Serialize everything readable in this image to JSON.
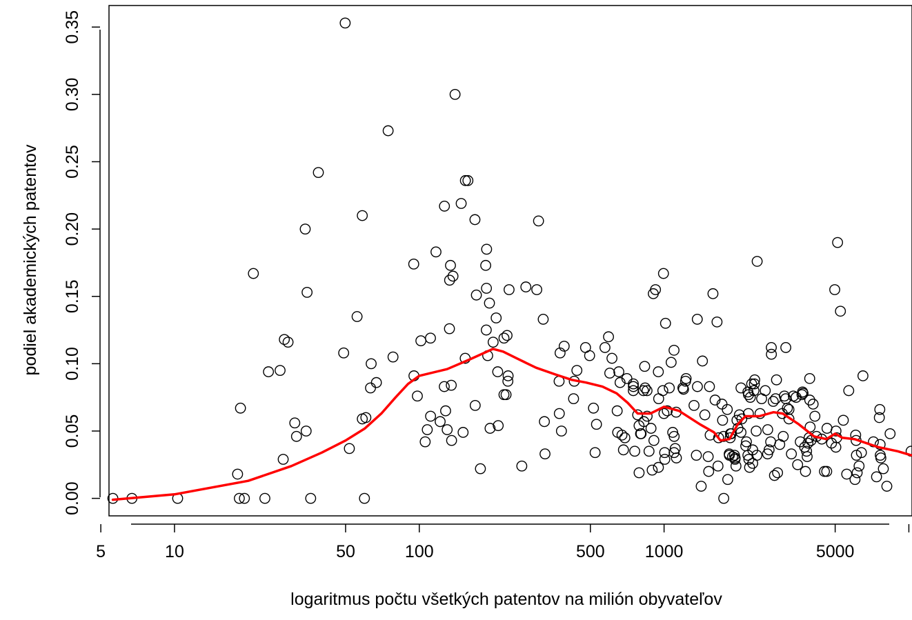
{
  "chart_data": {
    "type": "scatter",
    "xlabel": "logaritmus počtu všetkých patentov na milión obyvateľov",
    "ylabel": "podiel akademických patentov",
    "x_scale": "log",
    "xlim": [
      5.4,
      10300
    ],
    "ylim": [
      -0.013,
      0.366
    ],
    "x_ticks": [
      5,
      10,
      50,
      100,
      500,
      1000,
      5000
    ],
    "x_tick_labels": [
      "5",
      "10",
      "50",
      "100",
      "500",
      "1000",
      "5000"
    ],
    "x_unlabeled_ticks": [
      10000
    ],
    "y_ticks": [
      0.0,
      0.05,
      0.1,
      0.15,
      0.2,
      0.25,
      0.3,
      0.35
    ],
    "y_tick_labels": [
      "0.00",
      "0.05",
      "0.10",
      "0.15",
      "0.20",
      "0.25",
      "0.30",
      "0.35"
    ],
    "grid": false,
    "marker_color": "#000000",
    "line_color": "#ff0000",
    "points": [
      [
        5.6,
        0.0
      ],
      [
        6.7,
        0.0
      ],
      [
        10.3,
        0.0
      ],
      [
        18.1,
        0.018
      ],
      [
        18.4,
        0.0
      ],
      [
        18.6,
        0.067
      ],
      [
        19.3,
        0.0
      ],
      [
        21.0,
        0.167
      ],
      [
        23.4,
        0.0
      ],
      [
        24.2,
        0.094
      ],
      [
        27.0,
        0.095
      ],
      [
        27.8,
        0.029
      ],
      [
        28.1,
        0.118
      ],
      [
        29.1,
        0.116
      ],
      [
        31.0,
        0.056
      ],
      [
        31.5,
        0.046
      ],
      [
        34.2,
        0.2
      ],
      [
        34.8,
        0.153
      ],
      [
        34.5,
        0.05
      ],
      [
        36.0,
        0.0
      ],
      [
        38.7,
        0.242
      ],
      [
        49.8,
        0.353
      ],
      [
        49.1,
        0.108
      ],
      [
        51.8,
        0.037
      ],
      [
        55.7,
        0.135
      ],
      [
        58.5,
        0.21
      ],
      [
        58.5,
        0.059
      ],
      [
        60.5,
        0.06
      ],
      [
        59.7,
        0.0
      ],
      [
        63.2,
        0.082
      ],
      [
        63.6,
        0.1
      ],
      [
        66.8,
        0.086
      ],
      [
        74.6,
        0.273
      ],
      [
        78.1,
        0.105
      ],
      [
        94.9,
        0.174
      ],
      [
        95.1,
        0.091
      ],
      [
        98.2,
        0.076
      ],
      [
        101.5,
        0.117
      ],
      [
        105.7,
        0.042
      ],
      [
        107.8,
        0.051
      ],
      [
        111.2,
        0.061
      ],
      [
        111.1,
        0.119
      ],
      [
        117.0,
        0.183
      ],
      [
        121.7,
        0.057
      ],
      [
        126.7,
        0.217
      ],
      [
        126.5,
        0.083
      ],
      [
        128.1,
        0.065
      ],
      [
        130.0,
        0.051
      ],
      [
        132.8,
        0.126
      ],
      [
        134.1,
        0.173
      ],
      [
        133.0,
        0.162
      ],
      [
        135.1,
        0.084
      ],
      [
        135.5,
        0.043
      ],
      [
        137.3,
        0.165
      ],
      [
        140.0,
        0.3
      ],
      [
        148.3,
        0.219
      ],
      [
        151.0,
        0.049
      ],
      [
        154.0,
        0.104
      ],
      [
        154.3,
        0.236
      ],
      [
        158.0,
        0.236
      ],
      [
        168.8,
        0.207
      ],
      [
        169.2,
        0.069
      ],
      [
        171.1,
        0.151
      ],
      [
        177.7,
        0.022
      ],
      [
        186.8,
        0.173
      ],
      [
        188.1,
        0.156
      ],
      [
        188.4,
        0.185
      ],
      [
        187.8,
        0.125
      ],
      [
        190.3,
        0.106
      ],
      [
        193.5,
        0.145
      ],
      [
        194.6,
        0.052
      ],
      [
        200.3,
        0.116
      ],
      [
        206.1,
        0.134
      ],
      [
        209.1,
        0.094
      ],
      [
        210.1,
        0.054
      ],
      [
        221.8,
        0.119
      ],
      [
        221.8,
        0.077
      ],
      [
        226.2,
        0.077
      ],
      [
        228.3,
        0.121
      ],
      [
        230.6,
        0.091
      ],
      [
        230.1,
        0.087
      ],
      [
        232.7,
        0.155
      ],
      [
        262.3,
        0.024
      ],
      [
        272.5,
        0.157
      ],
      [
        302.0,
        0.155
      ],
      [
        307.0,
        0.206
      ],
      [
        320.8,
        0.133
      ],
      [
        324.4,
        0.057
      ],
      [
        326.3,
        0.033
      ],
      [
        372.5,
        0.087
      ],
      [
        373.3,
        0.063
      ],
      [
        376.0,
        0.108
      ],
      [
        380.8,
        0.05
      ],
      [
        390.8,
        0.113
      ],
      [
        426.8,
        0.074
      ],
      [
        429.6,
        0.087
      ],
      [
        440.4,
        0.095
      ],
      [
        477.7,
        0.112
      ],
      [
        496.4,
        0.106
      ],
      [
        514.7,
        0.067
      ],
      [
        522.7,
        0.034
      ],
      [
        529.5,
        0.055
      ],
      [
        573.5,
        0.112
      ],
      [
        593.0,
        0.12
      ],
      [
        600.0,
        0.093
      ],
      [
        612.5,
        0.104
      ],
      [
        643.4,
        0.065
      ],
      [
        653.4,
        0.094
      ],
      [
        646.3,
        0.049
      ],
      [
        661.1,
        0.086
      ],
      [
        673.0,
        0.047
      ],
      [
        682.3,
        0.036
      ],
      [
        691.5,
        0.045
      ],
      [
        704.7,
        0.089
      ],
      [
        748.7,
        0.08
      ],
      [
        749.2,
        0.083
      ],
      [
        749.0,
        0.085
      ],
      [
        758.7,
        0.035
      ],
      [
        780.0,
        0.062
      ],
      [
        790.3,
        0.054
      ],
      [
        790.6,
        0.019
      ],
      [
        801.5,
        0.048
      ],
      [
        805.8,
        0.048
      ],
      [
        824.0,
        0.08
      ],
      [
        826.8,
        0.057
      ],
      [
        833.1,
        0.098
      ],
      [
        836.4,
        0.082
      ],
      [
        852.0,
        0.08
      ],
      [
        852.7,
        0.061
      ],
      [
        868.0,
        0.035
      ],
      [
        884.4,
        0.052
      ],
      [
        894.1,
        0.021
      ],
      [
        903.6,
        0.152
      ],
      [
        908.7,
        0.043
      ],
      [
        922.5,
        0.155
      ],
      [
        947.5,
        0.094
      ],
      [
        950.4,
        0.074
      ],
      [
        948.1,
        0.023
      ],
      [
        994.4,
        0.167
      ],
      [
        988.3,
        0.08
      ],
      [
        998.6,
        0.063
      ],
      [
        1005.7,
        0.034
      ],
      [
        1006.8,
        0.029
      ],
      [
        1013.8,
        0.13
      ],
      [
        1030.5,
        0.065
      ],
      [
        1050.3,
        0.082
      ],
      [
        1068.8,
        0.101
      ],
      [
        1084.7,
        0.049
      ],
      [
        1098.2,
        0.11
      ],
      [
        1099.6,
        0.046
      ],
      [
        1098.6,
        0.034
      ],
      [
        1110.6,
        0.037
      ],
      [
        1120.6,
        0.064
      ],
      [
        1123.0,
        0.03
      ],
      [
        1193.6,
        0.082
      ],
      [
        1200.6,
        0.081
      ],
      [
        1224.1,
        0.087
      ],
      [
        1230.2,
        0.089
      ],
      [
        1325.3,
        0.069
      ],
      [
        1355.1,
        0.032
      ],
      [
        1366.8,
        0.133
      ],
      [
        1368.5,
        0.083
      ],
      [
        1417.8,
        0.009
      ],
      [
        1434.7,
        0.102
      ],
      [
        1467.3,
        0.062
      ],
      [
        1514.3,
        0.031
      ],
      [
        1521.4,
        0.02
      ],
      [
        1532.5,
        0.083
      ],
      [
        1542.8,
        0.047
      ],
      [
        1583.8,
        0.152
      ],
      [
        1616.0,
        0.073
      ],
      [
        1645.5,
        0.131
      ],
      [
        1660.7,
        0.024
      ],
      [
        1670.2,
        0.045
      ],
      [
        1724.2,
        0.07
      ],
      [
        1733.8,
        0.058
      ],
      [
        1750.8,
        0.046
      ],
      [
        1753.1,
        0.0
      ],
      [
        1812.3,
        0.066
      ],
      [
        1820.1,
        0.014
      ],
      [
        1845.1,
        0.033
      ],
      [
        1847.9,
        0.032
      ],
      [
        1863.0,
        0.045
      ],
      [
        1867.2,
        0.048
      ],
      [
        1881.5,
        0.048
      ],
      [
        1903.8,
        0.031
      ],
      [
        1939.6,
        0.032
      ],
      [
        1949.3,
        0.029
      ],
      [
        1950.6,
        0.03
      ],
      [
        1966.4,
        0.024
      ],
      [
        1985.4,
        0.058
      ],
      [
        2003.9,
        0.052
      ],
      [
        2030.5,
        0.062
      ],
      [
        2062.0,
        0.049
      ],
      [
        2061.8,
        0.082
      ],
      [
        2077.4,
        0.059
      ],
      [
        2156.0,
        0.039
      ],
      [
        2170.1,
        0.042
      ],
      [
        2200.0,
        0.032
      ],
      [
        2200.4,
        0.079
      ],
      [
        2210.5,
        0.063
      ],
      [
        2212.1,
        0.077
      ],
      [
        2219.6,
        0.029
      ],
      [
        2235.2,
        0.023
      ],
      [
        2250.8,
        0.075
      ],
      [
        2279.5,
        0.085
      ],
      [
        2302.3,
        0.036
      ],
      [
        2301.7,
        0.026
      ],
      [
        2329.7,
        0.08
      ],
      [
        2338.8,
        0.085
      ],
      [
        2345.7,
        0.088
      ],
      [
        2379.0,
        0.05
      ],
      [
        2394.5,
        0.032
      ],
      [
        2400.5,
        0.176
      ],
      [
        2466.1,
        0.063
      ],
      [
        2503.3,
        0.074
      ],
      [
        2590.6,
        0.08
      ],
      [
        2650.5,
        0.051
      ],
      [
        2647.3,
        0.033
      ],
      [
        2685.1,
        0.036
      ],
      [
        2725.6,
        0.042
      ],
      [
        2742.2,
        0.112
      ],
      [
        2744.3,
        0.107
      ],
      [
        2792.5,
        0.072
      ],
      [
        2824.8,
        0.017
      ],
      [
        2855.9,
        0.074
      ],
      [
        2879.3,
        0.088
      ],
      [
        2908.4,
        0.019
      ],
      [
        2968.3,
        0.04
      ],
      [
        3040.3,
        0.063
      ],
      [
        3067.3,
        0.046
      ],
      [
        3101.3,
        0.076
      ],
      [
        3141.3,
        0.074
      ],
      [
        3142.7,
        0.112
      ],
      [
        3189.3,
        0.067
      ],
      [
        3236.8,
        0.059
      ],
      [
        3237.1,
        0.066
      ],
      [
        3312.3,
        0.033
      ],
      [
        3374.3,
        0.076
      ],
      [
        3462.3,
        0.075
      ],
      [
        3512.5,
        0.025
      ],
      [
        3600.9,
        0.042
      ],
      [
        3658.6,
        0.077
      ],
      [
        3679.1,
        0.079
      ],
      [
        3696.1,
        0.078
      ],
      [
        3752.6,
        0.038
      ],
      [
        3780.8,
        0.02
      ],
      [
        3821.5,
        0.035
      ],
      [
        3841.6,
        0.031
      ],
      [
        3870.3,
        0.041
      ],
      [
        3912.7,
        0.045
      ],
      [
        3934.7,
        0.089
      ],
      [
        3937.2,
        0.073
      ],
      [
        3950.7,
        0.053
      ],
      [
        3985.3,
        0.043
      ],
      [
        4063.5,
        0.07
      ],
      [
        4131.8,
        0.061
      ],
      [
        4196.5,
        0.046
      ],
      [
        4407.0,
        0.044
      ],
      [
        4521.1,
        0.02
      ],
      [
        4618.3,
        0.02
      ],
      [
        4630.2,
        0.052
      ],
      [
        4833.4,
        0.041
      ],
      [
        4979.9,
        0.155
      ],
      [
        5032.2,
        0.038
      ],
      [
        5038.4,
        0.05
      ],
      [
        5075.0,
        0.045
      ],
      [
        5115.0,
        0.19
      ],
      [
        5253.3,
        0.139
      ],
      [
        5398.3,
        0.058
      ],
      [
        5573.4,
        0.018
      ],
      [
        5680.7,
        0.08
      ],
      [
        6025.8,
        0.014
      ],
      [
        6063.3,
        0.047
      ],
      [
        6088.7,
        0.043
      ],
      [
        6107.2,
        0.032
      ],
      [
        6148.7,
        0.019
      ],
      [
        6260.6,
        0.024
      ],
      [
        6400.2,
        0.034
      ],
      [
        6492.9,
        0.091
      ],
      [
        7164.7,
        0.042
      ],
      [
        7378.9,
        0.016
      ],
      [
        7575.4,
        0.06
      ],
      [
        7608.8,
        0.066
      ],
      [
        7631.9,
        0.04
      ],
      [
        7642.1,
        0.032
      ],
      [
        7684.1,
        0.03
      ],
      [
        7865.8,
        0.022
      ],
      [
        8129.5,
        0.009
      ],
      [
        8381.7,
        0.048
      ],
      [
        10213.0,
        0.035
      ]
    ],
    "trend_line": [
      [
        5.6,
        -0.001
      ],
      [
        10,
        0.003
      ],
      [
        20,
        0.013
      ],
      [
        30,
        0.024
      ],
      [
        40,
        0.034
      ],
      [
        50,
        0.043
      ],
      [
        60,
        0.052
      ],
      [
        70,
        0.063
      ],
      [
        80,
        0.075
      ],
      [
        90,
        0.085
      ],
      [
        100,
        0.091
      ],
      [
        130,
        0.096
      ],
      [
        160,
        0.103
      ],
      [
        200,
        0.111
      ],
      [
        220,
        0.109
      ],
      [
        250,
        0.104
      ],
      [
        300,
        0.097
      ],
      [
        360,
        0.092
      ],
      [
        420,
        0.088
      ],
      [
        480,
        0.086
      ],
      [
        560,
        0.083
      ],
      [
        640,
        0.078
      ],
      [
        710,
        0.071
      ],
      [
        780,
        0.063
      ],
      [
        880,
        0.063
      ],
      [
        1000,
        0.068
      ],
      [
        1150,
        0.065
      ],
      [
        1400,
        0.055
      ],
      [
        1600,
        0.049
      ],
      [
        1700,
        0.043
      ],
      [
        1850,
        0.044
      ],
      [
        2000,
        0.055
      ],
      [
        2150,
        0.061
      ],
      [
        2450,
        0.061
      ],
      [
        2800,
        0.064
      ],
      [
        3050,
        0.063
      ],
      [
        3550,
        0.055
      ],
      [
        4100,
        0.046
      ],
      [
        4600,
        0.044
      ],
      [
        5000,
        0.048
      ],
      [
        5350,
        0.045
      ],
      [
        6000,
        0.044
      ],
      [
        7500,
        0.038
      ],
      [
        9000,
        0.035
      ],
      [
        10213,
        0.032
      ]
    ]
  }
}
